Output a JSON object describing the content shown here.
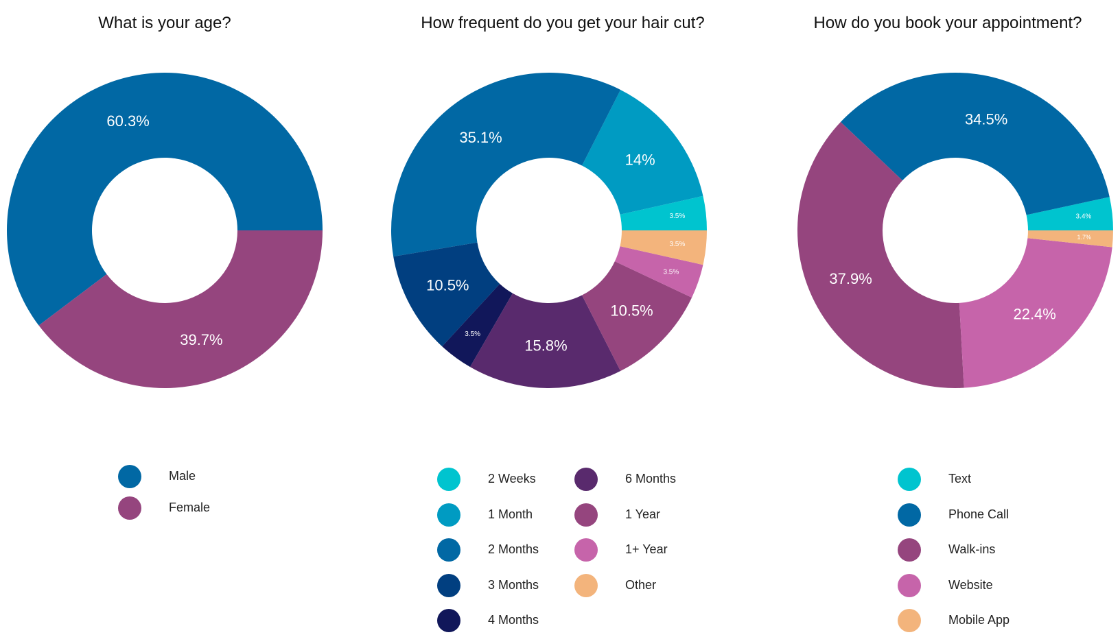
{
  "chart_data": [
    {
      "type": "pie",
      "title": "What is your age?",
      "categories": [
        "Male",
        "Female"
      ],
      "values": [
        60.3,
        39.7
      ],
      "labels": [
        "60.3%",
        "39.7%"
      ],
      "colors": [
        "#0168a4",
        "#95457e"
      ],
      "legend": "bottom"
    },
    {
      "type": "pie",
      "title": "How frequent do you get your hair cut?",
      "categories": [
        "2 Weeks",
        "1 Month",
        "2 Months",
        "3 Months",
        "4 Months",
        "6 Months",
        "1 Year",
        "1+ Year",
        "Other"
      ],
      "values": [
        3.5,
        14,
        35.1,
        10.5,
        3.5,
        15.8,
        10.5,
        3.5,
        3.5
      ],
      "labels": [
        "3.5%",
        "14%",
        "35.1%",
        "10.5%",
        "3.5%",
        "15.8%",
        "10.5%",
        "3.5%",
        "3.5%"
      ],
      "colors": [
        "#00c4cf",
        "#009bc2",
        "#0168a4",
        "#013f80",
        "#11175a",
        "#592a6d",
        "#95457e",
        "#c664aa",
        "#f3b47c"
      ],
      "legend": "bottom"
    },
    {
      "type": "pie",
      "title": "How do you book your appointment?",
      "categories": [
        "Text",
        "Phone Call",
        "Walk-ins",
        "Website",
        "Mobile App"
      ],
      "values": [
        3.4,
        34.5,
        37.9,
        22.4,
        1.7
      ],
      "labels": [
        "3.4%",
        "34.5%",
        "37.9%",
        "22.4%",
        "1.7%"
      ],
      "colors": [
        "#00c4cf",
        "#0168a4",
        "#95457e",
        "#c664aa",
        "#f3b47c"
      ],
      "legend": "bottom"
    }
  ]
}
